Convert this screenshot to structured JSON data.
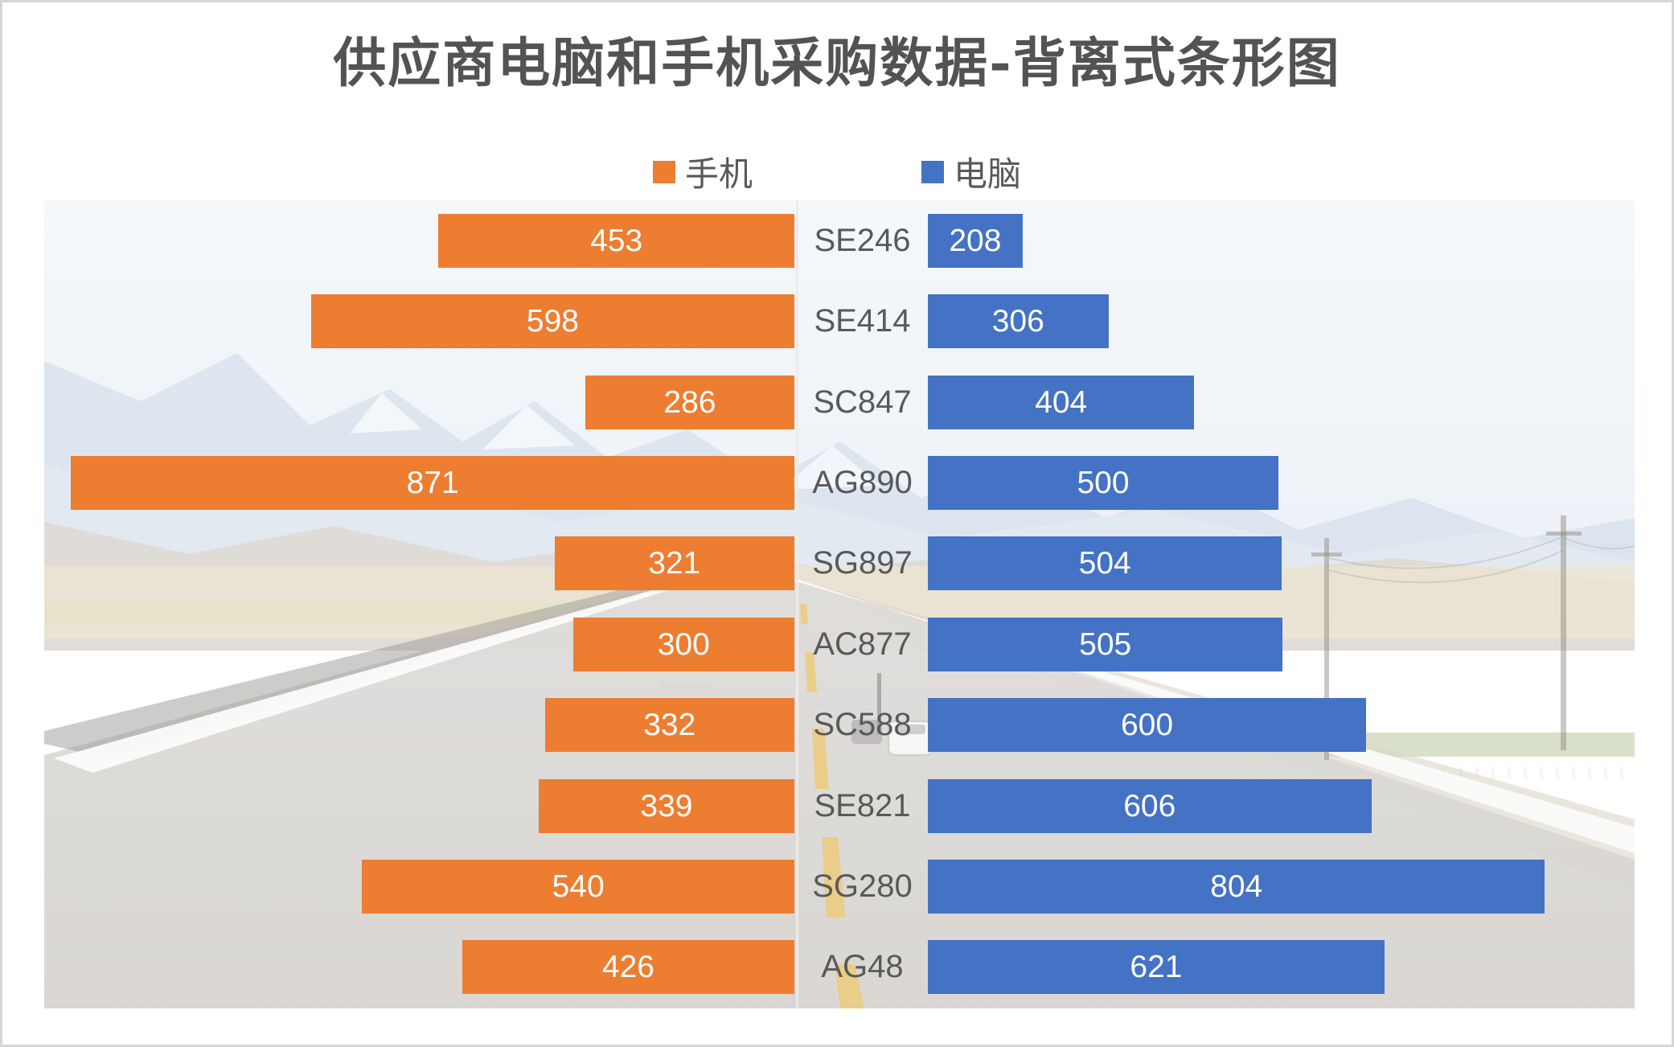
{
  "title": "供应商电脑和手机采购数据-背离式条形图",
  "legend": [
    {
      "label": "手机",
      "color": "#ED7D31"
    },
    {
      "label": "电脑",
      "color": "#4472C4"
    }
  ],
  "background": {
    "description": "faded-photo-of-desert-highway-with-snow-mountains",
    "accent_colors": {
      "phone_orange": "#ED7D31",
      "computer_blue": "#4472C4",
      "label_gray": "#595959"
    }
  },
  "chart_data": {
    "type": "bar",
    "variant": "diverging-horizontal",
    "title": "供应商电脑和手机采购数据-背离式条形图",
    "legend_position": "top",
    "grid": false,
    "categories": [
      "SE246",
      "SE414",
      "SC847",
      "AG890",
      "SG897",
      "AC877",
      "SC588",
      "SE821",
      "SG280",
      "AG48"
    ],
    "series": [
      {
        "name": "手机",
        "side": "left",
        "color": "#ED7D31",
        "values": [
          453,
          598,
          286,
          871,
          321,
          300,
          332,
          339,
          540,
          426
        ]
      },
      {
        "name": "电脑",
        "side": "right",
        "color": "#4472C4",
        "values": [
          208,
          306,
          404,
          500,
          504,
          505,
          600,
          606,
          804,
          621
        ]
      }
    ],
    "data_labels": "inside-center, white"
  }
}
